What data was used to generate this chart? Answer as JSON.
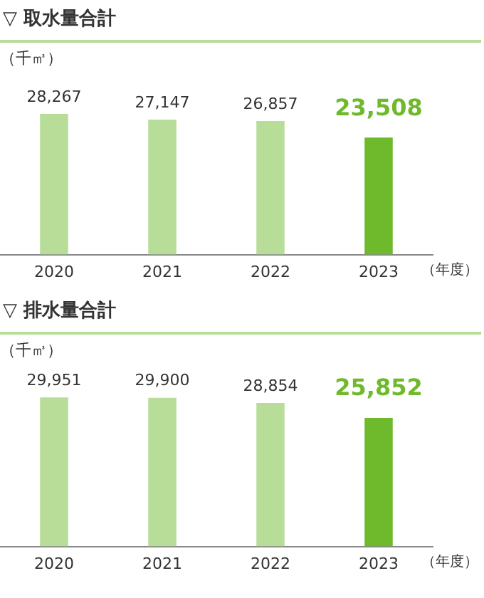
{
  "chart_data": [
    {
      "type": "bar",
      "title": "▽ 取水量合計",
      "ylabel": "（千㎥）",
      "xlabel": "（年度）",
      "categories": [
        "2020",
        "2021",
        "2022",
        "2023"
      ],
      "values": [
        28267,
        27147,
        26857,
        23508
      ],
      "value_labels": [
        "28,267",
        "27,147",
        "26,857",
        "23,508"
      ],
      "colors": [
        "#b7dd99",
        "#b7dd99",
        "#b7dd99",
        "#6fb92c"
      ]
    },
    {
      "type": "bar",
      "title": "▽ 排水量合計",
      "ylabel": "（千㎥）",
      "xlabel": "（年度）",
      "categories": [
        "2020",
        "2021",
        "2022",
        "2023"
      ],
      "values": [
        29951,
        29900,
        28854,
        25852
      ],
      "value_labels": [
        "29,951",
        "29,900",
        "28,854",
        "25,852"
      ],
      "colors": [
        "#b7dd99",
        "#b7dd99",
        "#b7dd99",
        "#6fb92c"
      ]
    }
  ]
}
